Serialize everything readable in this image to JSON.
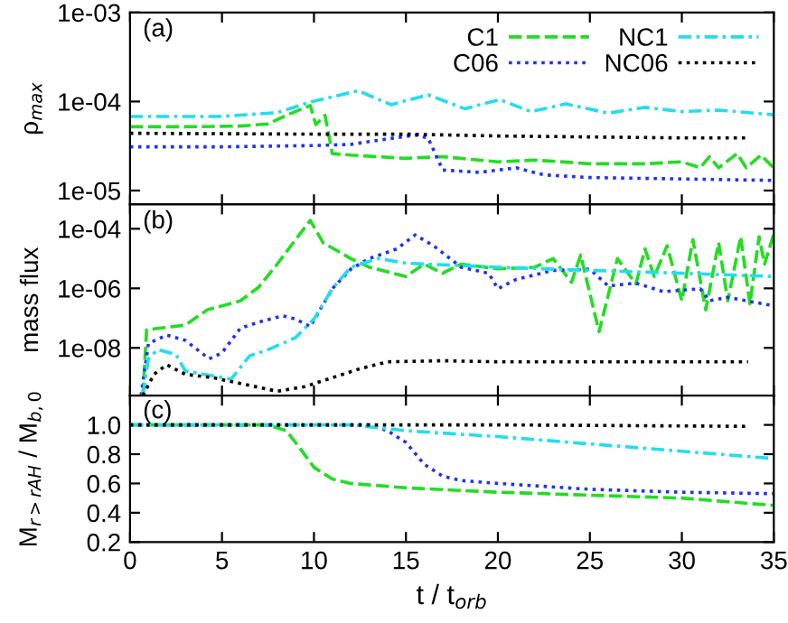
{
  "chart_data": [
    {
      "type": "line",
      "log": "y",
      "ylabel": "ρ$_{max}$",
      "annotations": [
        "(a)"
      ],
      "legend": "top right",
      "tick_labels": "y",
      "grid": false,
      "xlim": [
        0,
        35
      ],
      "xticks": [
        0,
        5,
        10,
        15,
        20,
        25,
        30,
        35
      ],
      "ylim": [
        7e-06,
        0.001
      ],
      "yticks": [
        {
          "value": 1e-05,
          "label": "1e-05"
        },
        {
          "value": 0.0001,
          "label": "1e-04"
        },
        {
          "value": 0.001,
          "label": "1e-03"
        }
      ],
      "series": [
        {
          "name": "C1",
          "color": "#22dd22",
          "line_style": "dashed",
          "x": [
            0,
            3,
            6,
            7.5,
            8.5,
            9.8,
            10.1,
            10.6,
            11,
            12,
            15,
            17,
            20,
            22,
            25,
            28,
            30,
            31,
            31.5,
            32,
            33,
            33.5,
            34.3,
            35
          ],
          "values": [
            5.2e-05,
            5.2e-05,
            5.3e-05,
            5.6e-05,
            7e-05,
            9e-05,
            5.5e-05,
            7e-05,
            2.6e-05,
            2.5e-05,
            2.3e-05,
            2.4e-05,
            2.1e-05,
            2.2e-05,
            2e-05,
            2e-05,
            2.1e-05,
            1.8e-05,
            2.4e-05,
            1.8e-05,
            2.6e-05,
            1.8e-05,
            2.5e-05,
            1.8e-05
          ]
        },
        {
          "name": "C06",
          "color": "#2233ee",
          "line_style": "dotted",
          "x": [
            0,
            5,
            10,
            12,
            14,
            15.5,
            16.2,
            17,
            19,
            21,
            22.5,
            25,
            30,
            35
          ],
          "values": [
            3.1e-05,
            3.1e-05,
            3.2e-05,
            3.3e-05,
            3.8e-05,
            4.2e-05,
            3.9e-05,
            1.7e-05,
            1.6e-05,
            1.8e-05,
            1.5e-05,
            1.4e-05,
            1.35e-05,
            1.3e-05
          ]
        },
        {
          "name": "NC1",
          "color": "#22ddee",
          "line_style": "dashdot",
          "x": [
            0,
            5,
            8,
            9.9,
            12.4,
            14.2,
            16.2,
            18.2,
            20.1,
            21.8,
            23.7,
            26,
            28,
            30,
            32,
            35
          ],
          "values": [
            6.8e-05,
            6.8e-05,
            7.5e-05,
            0.0001,
            0.000132,
            9.2e-05,
            0.000119,
            8.3e-05,
            0.000105,
            7.7e-05,
            9.4e-05,
            7.4e-05,
            8.6e-05,
            7.7e-05,
            8e-05,
            7.1e-05
          ]
        },
        {
          "name": "NC06",
          "color": "#000000",
          "line_style": "dotted",
          "x": [
            0,
            10,
            15,
            20,
            25,
            30,
            33.6
          ],
          "values": [
            4.4e-05,
            4.3e-05,
            4.3e-05,
            4.1e-05,
            4e-05,
            3.9e-05,
            3.9e-05
          ]
        }
      ]
    },
    {
      "type": "line",
      "log": "y",
      "ylabel": "mass flux",
      "annotations": [
        "(b)"
      ],
      "tick_labels": "y",
      "grid": false,
      "xlim": [
        0,
        35
      ],
      "xticks": [
        0,
        5,
        10,
        15,
        20,
        25,
        30,
        35
      ],
      "ylim": [
        2.5e-10,
        0.00066
      ],
      "yticks": [
        {
          "value": 1e-08,
          "label": "1e-08"
        },
        {
          "value": 1e-06,
          "label": "1e-06"
        },
        {
          "value": 0.0001,
          "label": "1e-04"
        }
      ],
      "series": [
        {
          "color": "#22dd22",
          "line_style": "dashed",
          "x": [
            0.7,
            0.9,
            1.5,
            3,
            4.2,
            6,
            7,
            8,
            9,
            9.8,
            10.5,
            12,
            13,
            15,
            16,
            17,
            18,
            20,
            22,
            23,
            24,
            24.5,
            25.5,
            26.5,
            27.5,
            28,
            28.5,
            29.2,
            30,
            30.6,
            31.3,
            32,
            32.5,
            33.2,
            33.7,
            34.2,
            34.5,
            35
          ],
          "values": [
            2.5e-10,
            4e-08,
            4.5e-08,
            5.8e-08,
            1.9e-07,
            3.8e-07,
            1.1e-06,
            6.5e-06,
            4.3e-05,
            0.00019,
            3.4e-05,
            1e-05,
            5.1e-06,
            2.5e-06,
            6.5e-06,
            3.2e-06,
            6.5e-06,
            4.5e-06,
            5.1e-06,
            1e-05,
            1.6e-06,
            1.3e-05,
            3.5e-08,
            1e-05,
            1.4e-06,
            2.1e-05,
            2.5e-06,
            2.7e-05,
            3.8e-07,
            4.3e-05,
            1.9e-07,
            3.4e-05,
            3.8e-07,
            5.4e-05,
            3e-07,
            5.4e-05,
            6.5e-06,
            6.8e-05
          ]
        },
        {
          "color": "#2233ee",
          "line_style": "dotted",
          "x": [
            0.6,
            1,
            2,
            3,
            4.3,
            5,
            6,
            7,
            8.3,
            9,
            9.8,
            11,
            12,
            13,
            14.5,
            15.5,
            16.5,
            18,
            19.5,
            20,
            21,
            23,
            25,
            26,
            27.5,
            29,
            31,
            31.5,
            32.5,
            33.5,
            35
          ],
          "values": [
            2.5e-10,
            1.4e-08,
            2.7e-08,
            1.8e-08,
            4.3e-09,
            6.8e-09,
            4.6e-08,
            7.3e-08,
            1.2e-07,
            9.3e-08,
            5.2e-08,
            9.7e-07,
            4.4e-06,
            1e-05,
            2.1e-05,
            6.2e-05,
            2.7e-05,
            5.1e-06,
            3.2e-06,
            9.7e-07,
            2e-06,
            4e-06,
            4.4e-06,
            1.2e-06,
            1.5e-06,
            7.7e-07,
            9.7e-07,
            3.8e-07,
            5e-07,
            3.8e-07,
            2.6e-07
          ]
        },
        {
          "color": "#22ddee",
          "line_style": "dashdot",
          "x": [
            0.7,
            1,
            1.5,
            2.5,
            3,
            4,
            5.5,
            6.5,
            7.5,
            9,
            10,
            11,
            12,
            13.5,
            15,
            20,
            25,
            30,
            35
          ],
          "values": [
            2.5e-10,
            4.3e-09,
            8.7e-09,
            6e-09,
            1.7e-09,
            1.3e-09,
            9e-10,
            5.4e-09,
            8.7e-09,
            2.2e-08,
            9.3e-08,
            9.7e-07,
            5.1e-06,
            1e-05,
            7e-06,
            5.1e-06,
            4e-06,
            3.2e-06,
            2.5e-06
          ]
        },
        {
          "color": "#000000",
          "line_style": "dotted",
          "x": [
            0.7,
            1.3,
            2,
            3,
            4.5,
            6,
            8,
            9.5,
            11,
            12.5,
            14,
            17,
            20,
            25,
            30,
            33.6
          ],
          "values": [
            2.5e-10,
            1.3e-09,
            2.7e-09,
            1.3e-09,
            1e-09,
            6.4e-10,
            3.5e-10,
            5e-10,
            1e-09,
            2e-09,
            3.4e-09,
            3.7e-09,
            3.4e-09,
            3.4e-09,
            3.4e-09,
            3.4e-09
          ]
        }
      ]
    },
    {
      "type": "line",
      "ylabel": "M$_{r>rAH}$ / M$_{b,0}$",
      "xlabel": "t / t$_{orb}$",
      "annotations": [
        "(c)"
      ],
      "grid": false,
      "xlim": [
        0,
        35
      ],
      "xticks": [
        0,
        5,
        10,
        15,
        20,
        25,
        30,
        35
      ],
      "ylim": [
        0.2,
        1.2
      ],
      "yticks": [
        {
          "value": 0.2,
          "label": "0.2"
        },
        {
          "value": 0.4,
          "label": "0.4"
        },
        {
          "value": 0.6,
          "label": "0.6"
        },
        {
          "value": 0.8,
          "label": "0.8"
        },
        {
          "value": 1.0,
          "label": "1.0"
        }
      ],
      "series": [
        {
          "color": "#22dd22",
          "line_style": "dashed",
          "x": [
            0,
            7.5,
            8.5,
            9.3,
            10,
            11,
            12,
            15,
            20,
            25,
            30,
            35
          ],
          "values": [
            1.0,
            1.0,
            0.96,
            0.83,
            0.71,
            0.63,
            0.6,
            0.57,
            0.54,
            0.52,
            0.5,
            0.45
          ]
        },
        {
          "color": "#2233ee",
          "line_style": "dotted",
          "x": [
            0,
            13,
            14,
            15,
            16,
            17,
            18,
            20,
            25,
            30,
            35
          ],
          "values": [
            1.0,
            1.0,
            0.96,
            0.88,
            0.73,
            0.65,
            0.62,
            0.6,
            0.56,
            0.54,
            0.53
          ]
        },
        {
          "color": "#22ddee",
          "line_style": "dashdot",
          "x": [
            0,
            12,
            15,
            20,
            25,
            30,
            35
          ],
          "values": [
            1.0,
            1.0,
            0.96,
            0.92,
            0.87,
            0.82,
            0.77
          ]
        },
        {
          "color": "#000000",
          "line_style": "dotted",
          "x": [
            0,
            20,
            33.6
          ],
          "values": [
            1.0,
            1.0,
            0.99
          ]
        }
      ]
    }
  ]
}
